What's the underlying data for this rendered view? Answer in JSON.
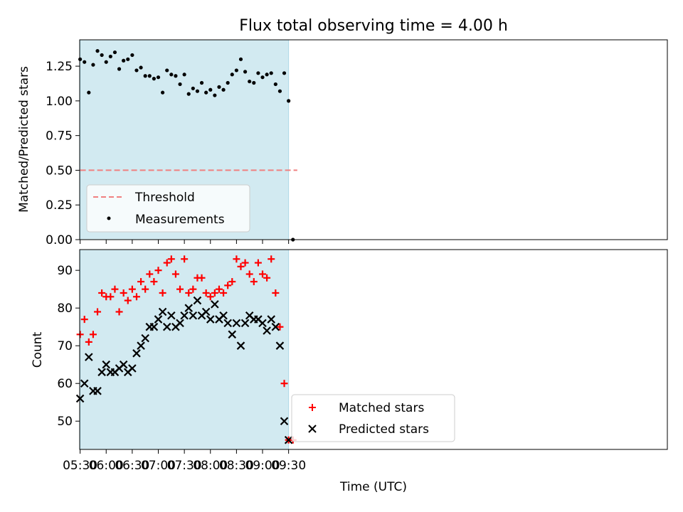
{
  "chart_data": [
    {
      "type": "scatter",
      "title": "Flux total observing time = 4.00 h",
      "ylabel": "Matched/Predicted stars",
      "xlabel": "",
      "xlim_min": [
        329.5,
        1006
      ],
      "ylim": [
        0,
        1.44
      ],
      "yticks": [
        0,
        0.25,
        0.5,
        0.75,
        1.0,
        1.25
      ],
      "ytick_labels": [
        "0.00",
        "0.25",
        "0.50",
        "0.75",
        "1.00",
        "1.25"
      ],
      "observing_window_min": [
        330,
        570
      ],
      "observing_window_color": "#add8e6",
      "threshold": {
        "name": "Threshold",
        "y": 0.5,
        "x_min": [
          330,
          580
        ],
        "color": "#f08080",
        "style": "dashed"
      },
      "legend": {
        "location": "lower left",
        "entries": [
          "Threshold",
          "Measurements"
        ]
      },
      "series": [
        {
          "name": "Measurements",
          "marker": "dot",
          "color": "#000000",
          "x_min": [
            330,
            335,
            340,
            345,
            350,
            355,
            360,
            365,
            370,
            375,
            380,
            385,
            390,
            395,
            400,
            405,
            410,
            415,
            420,
            425,
            430,
            435,
            440,
            445,
            450,
            455,
            460,
            465,
            470,
            475,
            480,
            485,
            490,
            495,
            500,
            505,
            510,
            515,
            520,
            525,
            530,
            535,
            540,
            545,
            550,
            555,
            560,
            565,
            570,
            575
          ],
          "y": [
            1.3,
            1.28,
            1.06,
            1.26,
            1.36,
            1.33,
            1.28,
            1.32,
            1.35,
            1.23,
            1.29,
            1.3,
            1.33,
            1.22,
            1.24,
            1.18,
            1.18,
            1.16,
            1.17,
            1.06,
            1.22,
            1.19,
            1.18,
            1.12,
            1.19,
            1.05,
            1.09,
            1.07,
            1.13,
            1.06,
            1.08,
            1.04,
            1.1,
            1.08,
            1.13,
            1.19,
            1.22,
            1.3,
            1.21,
            1.14,
            1.13,
            1.2,
            1.17,
            1.19,
            1.2,
            1.12,
            1.07,
            1.2,
            1.0,
            0.0
          ]
        }
      ]
    },
    {
      "type": "scatter",
      "title": "",
      "xlabel": "Time (UTC)",
      "ylabel": "Count",
      "xlim_min": [
        329.5,
        1006
      ],
      "ylim": [
        42.5,
        95.5
      ],
      "yticks": [
        50,
        60,
        70,
        80,
        90
      ],
      "ytick_labels": [
        "50",
        "60",
        "70",
        "80",
        "90"
      ],
      "xticks_min": [
        330,
        360,
        390,
        420,
        450,
        480,
        510,
        540,
        570
      ],
      "xtick_labels": [
        "05:30",
        "06:00",
        "06:30",
        "07:00",
        "07:30",
        "08:00",
        "08:30",
        "09:00",
        "09:30"
      ],
      "observing_window_min": [
        330,
        570
      ],
      "observing_window_color": "#add8e6",
      "legend": {
        "location": "lower center",
        "entries": [
          "Matched stars",
          "Predicted stars"
        ]
      },
      "series": [
        {
          "name": "Matched stars",
          "marker": "plus",
          "color": "#ff0000",
          "x_min": [
            330,
            335,
            340,
            345,
            350,
            355,
            360,
            365,
            370,
            375,
            380,
            385,
            390,
            395,
            400,
            405,
            410,
            415,
            420,
            425,
            430,
            435,
            440,
            445,
            450,
            455,
            460,
            465,
            470,
            475,
            480,
            485,
            490,
            495,
            500,
            505,
            510,
            515,
            520,
            525,
            530,
            535,
            540,
            545,
            550,
            555,
            560,
            565,
            570,
            575
          ],
          "y": [
            73,
            77,
            71,
            73,
            79,
            84,
            83,
            83,
            85,
            79,
            84,
            82,
            85,
            83,
            87,
            85,
            89,
            87,
            90,
            84,
            92,
            93,
            89,
            85,
            93,
            84,
            85,
            88,
            88,
            84,
            83,
            84,
            85,
            84,
            86,
            87,
            93,
            91,
            92,
            89,
            87,
            92,
            89,
            88,
            93,
            84,
            75,
            60,
            45,
            45
          ]
        },
        {
          "name": "Predicted stars",
          "marker": "x",
          "color": "#000000",
          "x_min": [
            330,
            335,
            340,
            345,
            350,
            355,
            360,
            365,
            370,
            375,
            380,
            385,
            390,
            395,
            400,
            405,
            410,
            415,
            420,
            425,
            430,
            435,
            440,
            445,
            450,
            455,
            460,
            465,
            470,
            475,
            480,
            485,
            490,
            495,
            500,
            505,
            510,
            515,
            520,
            525,
            530,
            535,
            540,
            545,
            550,
            555,
            560,
            565,
            570
          ],
          "y": [
            56,
            60,
            67,
            58,
            58,
            63,
            65,
            63,
            63,
            64,
            65,
            63,
            64,
            68,
            70,
            72,
            75,
            75,
            77,
            79,
            75,
            78,
            75,
            76,
            78,
            80,
            78,
            82,
            78,
            79,
            77,
            81,
            77,
            78,
            76,
            73,
            76,
            70,
            76,
            78,
            77,
            77,
            76,
            74,
            77,
            75,
            70,
            50,
            45
          ]
        }
      ]
    }
  ]
}
